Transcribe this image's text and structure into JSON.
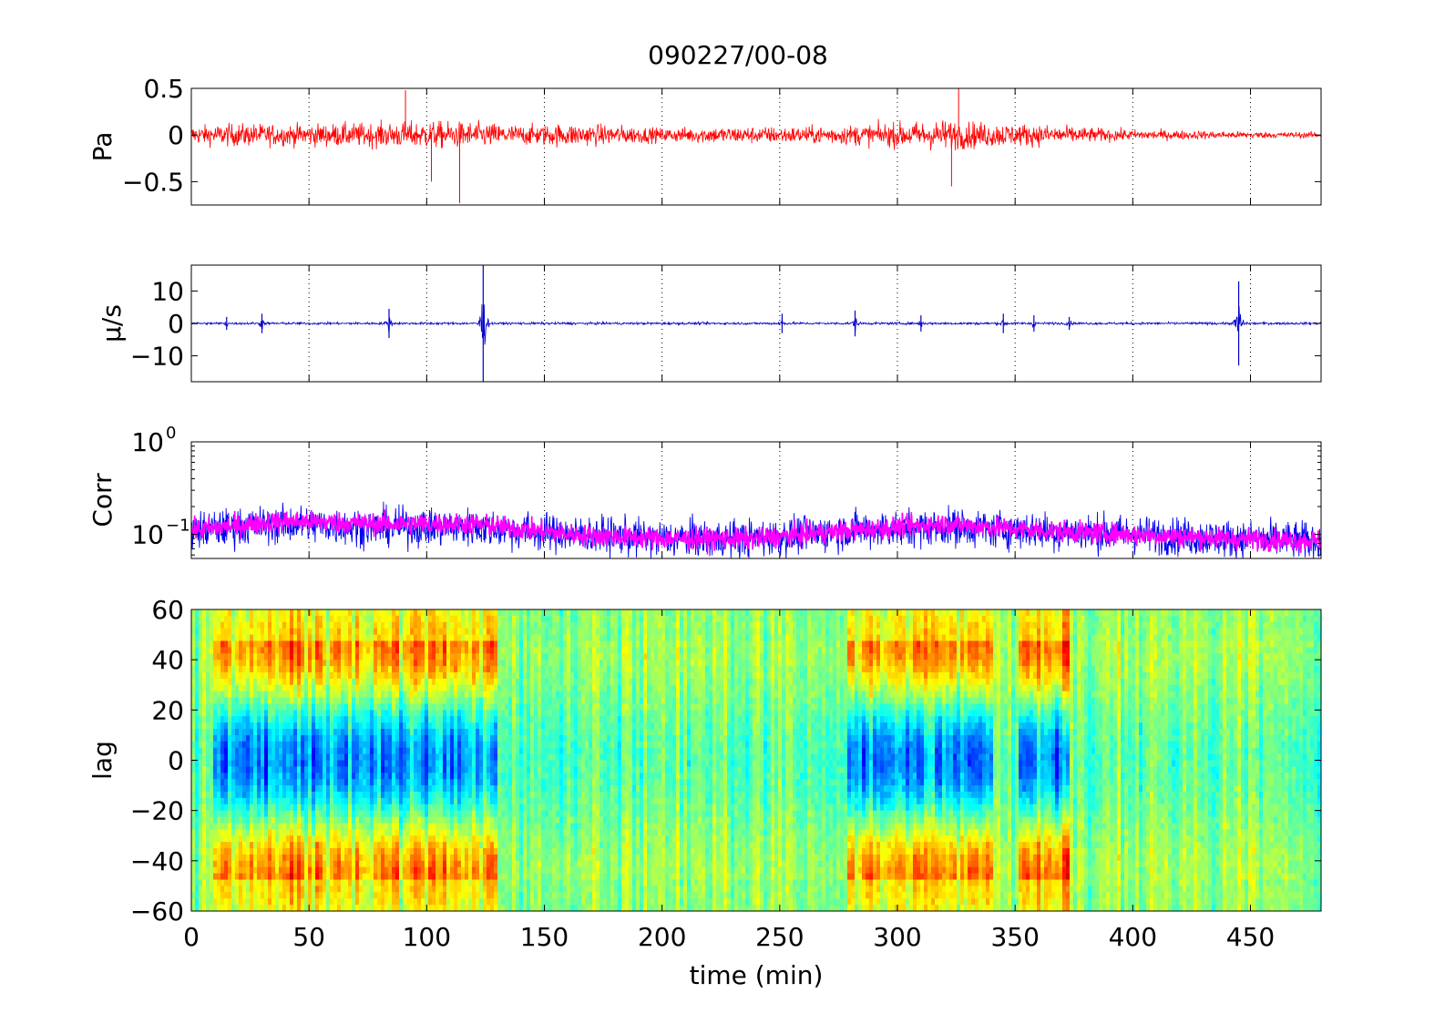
{
  "figure_title": "090227/00-08",
  "chart_data": [
    {
      "id": "pressure",
      "type": "line",
      "title": "",
      "ylabel": "Pa",
      "xlabel": "",
      "xlim": [
        0,
        480
      ],
      "ylim": [
        -0.75,
        0.5
      ],
      "xticks": [
        0,
        50,
        100,
        150,
        200,
        250,
        300,
        350,
        400,
        450
      ],
      "xtick_labels": [],
      "yticks": [
        -0.5,
        0,
        0.5
      ],
      "ytick_labels": [
        "−0.5",
        "0",
        "0.5"
      ],
      "grid": "x-dotted",
      "legend": "none",
      "series": [
        {
          "color": "#ff0000",
          "envelope_x": [
            0,
            20,
            40,
            60,
            80,
            100,
            120,
            140,
            160,
            180,
            200,
            220,
            240,
            260,
            280,
            300,
            320,
            340,
            360,
            380,
            400,
            420,
            440,
            460,
            480
          ],
          "envelope_amp": [
            0.12,
            0.15,
            0.14,
            0.15,
            0.16,
            0.18,
            0.17,
            0.13,
            0.15,
            0.13,
            0.09,
            0.11,
            0.11,
            0.11,
            0.13,
            0.16,
            0.2,
            0.16,
            0.14,
            0.1,
            0.07,
            0.06,
            0.05,
            0.04,
            0.04
          ],
          "peaks": [
            {
              "x": 91,
              "y": 0.48
            },
            {
              "x": 114,
              "y": -0.73
            },
            {
              "x": 326,
              "y": 0.5
            },
            {
              "x": 323,
              "y": -0.55
            },
            {
              "x": 102,
              "y": -0.5
            }
          ]
        }
      ]
    },
    {
      "id": "velocity",
      "type": "line",
      "title": "",
      "ylabel": "μ/s",
      "xlabel": "",
      "xlim": [
        0,
        480
      ],
      "ylim": [
        -18,
        18
      ],
      "xticks": [
        0,
        50,
        100,
        150,
        200,
        250,
        300,
        350,
        400,
        450
      ],
      "xtick_labels": [],
      "yticks": [
        -10,
        0,
        10
      ],
      "ytick_labels": [
        "−10",
        "0",
        "10"
      ],
      "grid": "x-dotted",
      "legend": "none",
      "series": [
        {
          "color": "#0000cc",
          "baseline_amp": 0.5,
          "spikes": [
            {
              "x": 15,
              "a": 2
            },
            {
              "x": 30,
              "a": 3
            },
            {
              "x": 84,
              "a": 4.5
            },
            {
              "x": 124,
              "a": 18
            },
            {
              "x": 251,
              "a": 3
            },
            {
              "x": 282,
              "a": 4
            },
            {
              "x": 310,
              "a": 2.5
            },
            {
              "x": 345,
              "a": 3
            },
            {
              "x": 358,
              "a": 2.5
            },
            {
              "x": 373,
              "a": 2
            },
            {
              "x": 445,
              "a": 13
            }
          ]
        }
      ]
    },
    {
      "id": "correlation",
      "type": "line",
      "title": "",
      "ylabel": "Corr",
      "xlabel": "",
      "xlim": [
        0,
        480
      ],
      "ylim": [
        0.055,
        1.0
      ],
      "yscale": "log",
      "xticks": [
        0,
        50,
        100,
        150,
        200,
        250,
        300,
        350,
        400,
        450
      ],
      "xtick_labels": [],
      "yticks": [
        0.1,
        1
      ],
      "ytick_base": "10",
      "ytick_exponents": [
        "−1",
        "0"
      ],
      "grid": "x-dotted",
      "legend": "none",
      "series": [
        {
          "color": "#0000ee",
          "level_x": [
            0,
            40,
            80,
            120,
            160,
            200,
            240,
            280,
            320,
            360,
            400,
            440,
            480
          ],
          "level_y": [
            0.11,
            0.13,
            0.12,
            0.12,
            0.1,
            0.09,
            0.09,
            0.11,
            0.12,
            0.11,
            0.1,
            0.09,
            0.085
          ]
        },
        {
          "color": "#ff00ff",
          "level_x": [
            0,
            40,
            80,
            120,
            160,
            200,
            240,
            280,
            320,
            360,
            400,
            440,
            480
          ],
          "level_y": [
            0.11,
            0.14,
            0.13,
            0.13,
            0.1,
            0.09,
            0.09,
            0.11,
            0.13,
            0.11,
            0.1,
            0.09,
            0.085
          ]
        }
      ]
    },
    {
      "id": "lag",
      "type": "heatmap",
      "title": "",
      "ylabel": "lag",
      "xlabel": "time (min)",
      "xlim": [
        0,
        480
      ],
      "ylim": [
        -60,
        60
      ],
      "xticks": [
        0,
        50,
        100,
        150,
        200,
        250,
        300,
        350,
        400,
        450
      ],
      "xtick_labels": [
        "0",
        "50",
        "100",
        "150",
        "200",
        "250",
        "300",
        "350",
        "400",
        "450"
      ],
      "yticks": [
        -60,
        -40,
        -20,
        0,
        20,
        40,
        60
      ],
      "ytick_labels": [
        "−60",
        "−40",
        "−20",
        "0",
        "20",
        "40",
        "60"
      ],
      "grid": "none",
      "legend": "none",
      "colormap": "jet",
      "strong_segments": [
        [
          10,
          130
        ],
        [
          278,
          340
        ],
        [
          352,
          373
        ]
      ]
    }
  ]
}
